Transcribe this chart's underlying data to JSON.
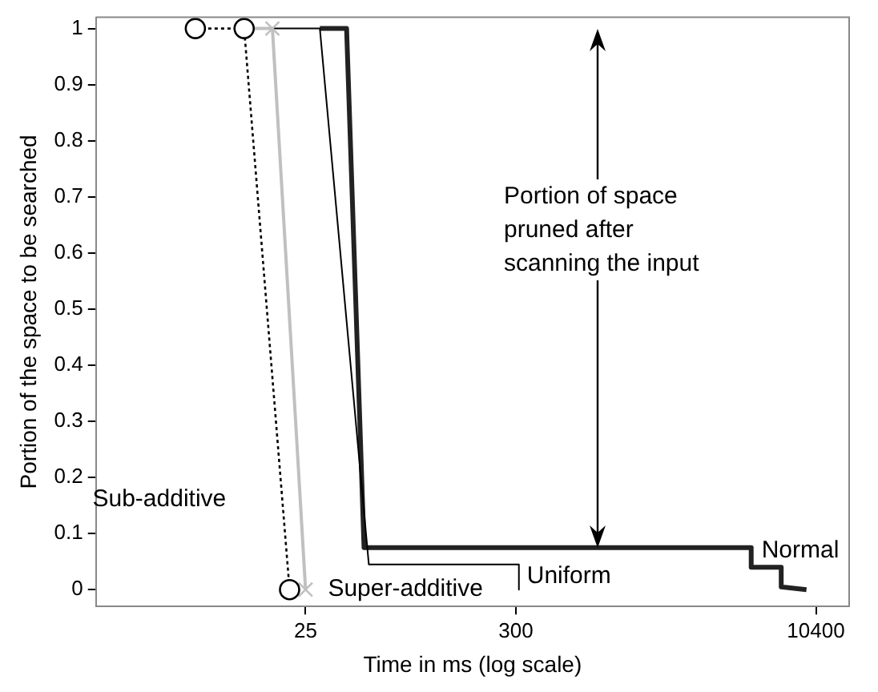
{
  "chart_data": {
    "type": "line",
    "xlabel": "Time in ms (log scale)",
    "ylabel": "Portion of the space to be searched",
    "log": "x",
    "xlim": [
      2.1,
      15400
    ],
    "xticks": [
      25,
      300,
      10400
    ],
    "ylim": [
      -0.03,
      1.02
    ],
    "yticks": [
      0,
      0.1,
      0.2,
      0.3,
      0.4,
      0.5,
      0.6,
      0.7,
      0.8,
      0.9,
      1
    ],
    "grid": false,
    "series": [
      {
        "name": "Sub-additive",
        "color": "#000000",
        "line_style": "dotted",
        "marker": "circle",
        "x": [
          6.8,
          12.1,
          20.7
        ],
        "values": [
          1,
          1,
          0
        ]
      },
      {
        "name": "Super-additive",
        "color": "#c0c0c0",
        "line_style": "solid",
        "marker": "cross",
        "x": [
          12.1,
          16.9,
          25
        ],
        "values": [
          1,
          1,
          0
        ]
      },
      {
        "name": "Uniform",
        "color": "#000000",
        "line_style": "solid",
        "marker": "none",
        "x": [
          16.9,
          29.6,
          52.8,
          311,
          311
        ],
        "values": [
          1,
          1,
          0.045,
          0.045,
          0
        ]
      },
      {
        "name": "Normal",
        "color": "#222222",
        "line_style": "solid",
        "marker": "none",
        "x": [
          29.6,
          40.6,
          49.9,
          4840,
          4840,
          6900,
          6900,
          9300
        ],
        "values": [
          1,
          1,
          0.075,
          0.075,
          0.04,
          0.04,
          0.005,
          0
        ]
      }
    ],
    "annotations": [
      "Portion of space pruned after scanning the input"
    ]
  }
}
